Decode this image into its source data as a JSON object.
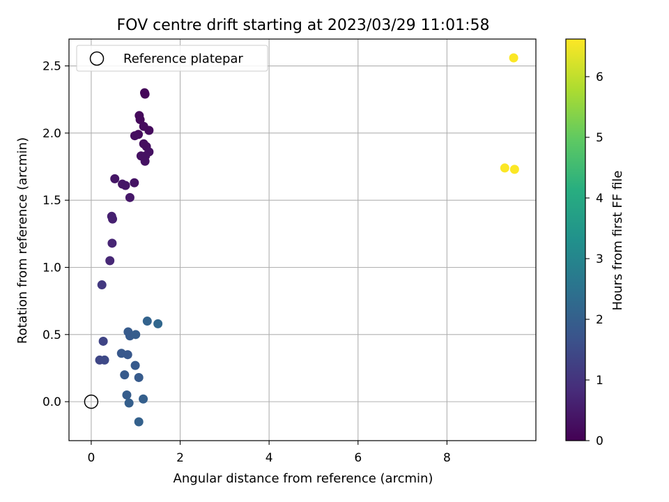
{
  "chart_data": {
    "type": "scatter",
    "title": "FOV centre drift starting at 2023/03/29 11:01:58",
    "xlabel": "Angular distance from reference (arcmin)",
    "ylabel": "Rotation from reference (arcmin)",
    "xlim": [
      -0.5,
      10.0
    ],
    "ylim": [
      -0.29,
      2.7
    ],
    "xticks": [
      0,
      2,
      4,
      6,
      8
    ],
    "yticks": [
      0.0,
      0.5,
      1.0,
      1.5,
      2.0,
      2.5
    ],
    "xtick_labels": [
      "0",
      "2",
      "4",
      "6",
      "8"
    ],
    "ytick_labels": [
      "0.0",
      "0.5",
      "1.0",
      "1.5",
      "2.0",
      "2.5"
    ],
    "grid": true,
    "legend_position": "top-left",
    "reference": {
      "name": "Reference platepar",
      "x": 0.0,
      "y": 0.0
    },
    "colorbar": {
      "label": "Hours from first FF file",
      "range": [
        0,
        6.62
      ],
      "ticks": [
        0,
        1,
        2,
        3,
        4,
        5,
        6
      ],
      "tick_labels": [
        "0",
        "1",
        "2",
        "3",
        "4",
        "5",
        "6"
      ],
      "colormap": "viridis"
    },
    "points": [
      {
        "x": 1.2,
        "y": 2.3,
        "hours": 0.1
      },
      {
        "x": 1.21,
        "y": 2.29,
        "hours": 0.1
      },
      {
        "x": 1.08,
        "y": 2.13,
        "hours": 0.15
      },
      {
        "x": 1.1,
        "y": 2.1,
        "hours": 0.15
      },
      {
        "x": 1.18,
        "y": 2.05,
        "hours": 0.2
      },
      {
        "x": 1.3,
        "y": 2.02,
        "hours": 0.2
      },
      {
        "x": 1.06,
        "y": 1.99,
        "hours": 0.2
      },
      {
        "x": 0.98,
        "y": 1.98,
        "hours": 0.25
      },
      {
        "x": 1.18,
        "y": 1.92,
        "hours": 0.25
      },
      {
        "x": 1.24,
        "y": 1.9,
        "hours": 0.25
      },
      {
        "x": 1.3,
        "y": 1.86,
        "hours": 0.3
      },
      {
        "x": 1.12,
        "y": 1.83,
        "hours": 0.3
      },
      {
        "x": 1.22,
        "y": 1.83,
        "hours": 0.3
      },
      {
        "x": 1.21,
        "y": 1.79,
        "hours": 0.3
      },
      {
        "x": 0.53,
        "y": 1.66,
        "hours": 0.4
      },
      {
        "x": 0.7,
        "y": 1.62,
        "hours": 0.4
      },
      {
        "x": 0.77,
        "y": 1.61,
        "hours": 0.4
      },
      {
        "x": 0.97,
        "y": 1.63,
        "hours": 0.35
      },
      {
        "x": 0.87,
        "y": 1.52,
        "hours": 0.45
      },
      {
        "x": 0.46,
        "y": 1.38,
        "hours": 0.6
      },
      {
        "x": 0.48,
        "y": 1.36,
        "hours": 0.6
      },
      {
        "x": 0.47,
        "y": 1.18,
        "hours": 0.7
      },
      {
        "x": 0.42,
        "y": 1.05,
        "hours": 0.75
      },
      {
        "x": 0.24,
        "y": 0.87,
        "hours": 1.1
      },
      {
        "x": 1.26,
        "y": 0.6,
        "hours": 2.1
      },
      {
        "x": 1.5,
        "y": 0.58,
        "hours": 2.2
      },
      {
        "x": 0.83,
        "y": 0.52,
        "hours": 1.9
      },
      {
        "x": 0.87,
        "y": 0.49,
        "hours": 1.9
      },
      {
        "x": 1.0,
        "y": 0.5,
        "hours": 1.95
      },
      {
        "x": 0.27,
        "y": 0.45,
        "hours": 1.35
      },
      {
        "x": 0.68,
        "y": 0.36,
        "hours": 1.8
      },
      {
        "x": 0.82,
        "y": 0.35,
        "hours": 1.8
      },
      {
        "x": 0.19,
        "y": 0.31,
        "hours": 1.4
      },
      {
        "x": 0.3,
        "y": 0.31,
        "hours": 1.45
      },
      {
        "x": 0.99,
        "y": 0.27,
        "hours": 1.85
      },
      {
        "x": 0.75,
        "y": 0.2,
        "hours": 1.85
      },
      {
        "x": 1.07,
        "y": 0.18,
        "hours": 1.9
      },
      {
        "x": 0.8,
        "y": 0.05,
        "hours": 1.95
      },
      {
        "x": 1.17,
        "y": 0.02,
        "hours": 2.0
      },
      {
        "x": 0.85,
        "y": -0.01,
        "hours": 2.0
      },
      {
        "x": 1.07,
        "y": -0.15,
        "hours": 2.05
      },
      {
        "x": 9.5,
        "y": 2.56,
        "hours": 6.6
      },
      {
        "x": 9.3,
        "y": 1.74,
        "hours": 6.6
      },
      {
        "x": 9.52,
        "y": 1.73,
        "hours": 6.6
      }
    ]
  }
}
